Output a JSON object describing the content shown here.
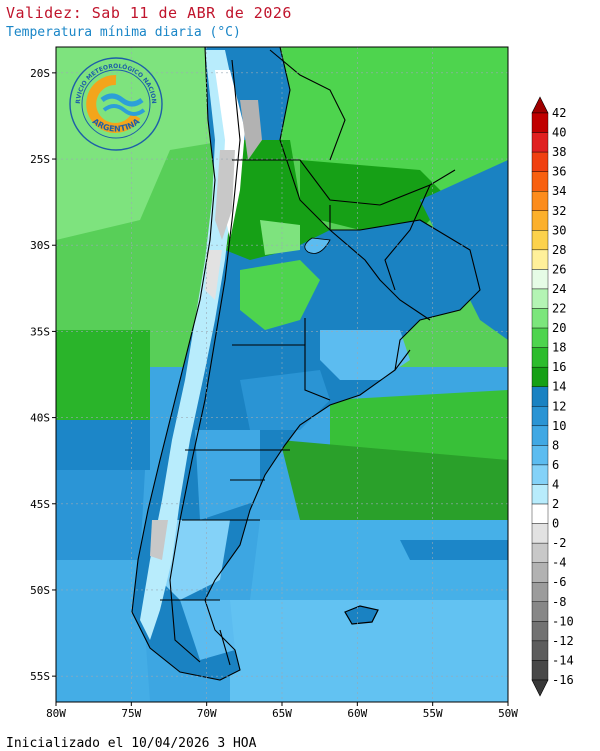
{
  "header": {
    "title": "Validez: Sab 11 de ABR de 2026",
    "subtitle": "Temperatura mínima diaria (°C)"
  },
  "footer": {
    "init_text": "Inicializado el 10/04/2026 3 HOA"
  },
  "logo": {
    "top_text": "SERVICIO METEOROLÓGICO NACIONAL",
    "bottom_text": "ARGENTINA",
    "colors": {
      "ring": "#1d5fa8",
      "sun": "#f3a51b",
      "wave": "#2d9fd8"
    }
  },
  "map": {
    "lat_labels": [
      "20S",
      "25S",
      "30S",
      "35S",
      "40S",
      "45S",
      "50S",
      "55S"
    ],
    "lon_labels": [
      "80W",
      "75W",
      "70W",
      "65W",
      "60W",
      "55W",
      "50W"
    ],
    "lat_values": [
      -20,
      -25,
      -30,
      -35,
      -40,
      -45,
      -50,
      -55
    ],
    "lon_values": [
      -80,
      -75,
      -70,
      -65,
      -60,
      -55,
      -50
    ],
    "lat_range": [
      -56.5,
      -18.5
    ],
    "lon_range": [
      -80,
      -50
    ]
  },
  "colorbar": {
    "labels": [
      "42",
      "40",
      "38",
      "36",
      "34",
      "32",
      "30",
      "28",
      "26",
      "24",
      "22",
      "20",
      "18",
      "16",
      "14",
      "12",
      "10",
      "8",
      "6",
      "4",
      "2",
      "0",
      "-2",
      "-4",
      "-6",
      "-8",
      "-10",
      "-12",
      "-14",
      "-16"
    ],
    "colors": [
      "#c00000",
      "#e02020",
      "#f04010",
      "#f86010",
      "#fc8c1c",
      "#fcb02c",
      "#fcd24c",
      "#fff09a",
      "#e6fce6",
      "#b4f4b4",
      "#7ce67c",
      "#4ed44e",
      "#2cbc2c",
      "#16a016",
      "#1a82c2",
      "#2a94d4",
      "#40a8e4",
      "#5cbcf0",
      "#84d2f8",
      "#b8ecfc",
      "#ffffff",
      "#e2e2e2",
      "#c8c8c8",
      "#b2b2b2",
      "#9c9c9c",
      "#878787",
      "#727272",
      "#5c5c5c",
      "#484848"
    ]
  }
}
